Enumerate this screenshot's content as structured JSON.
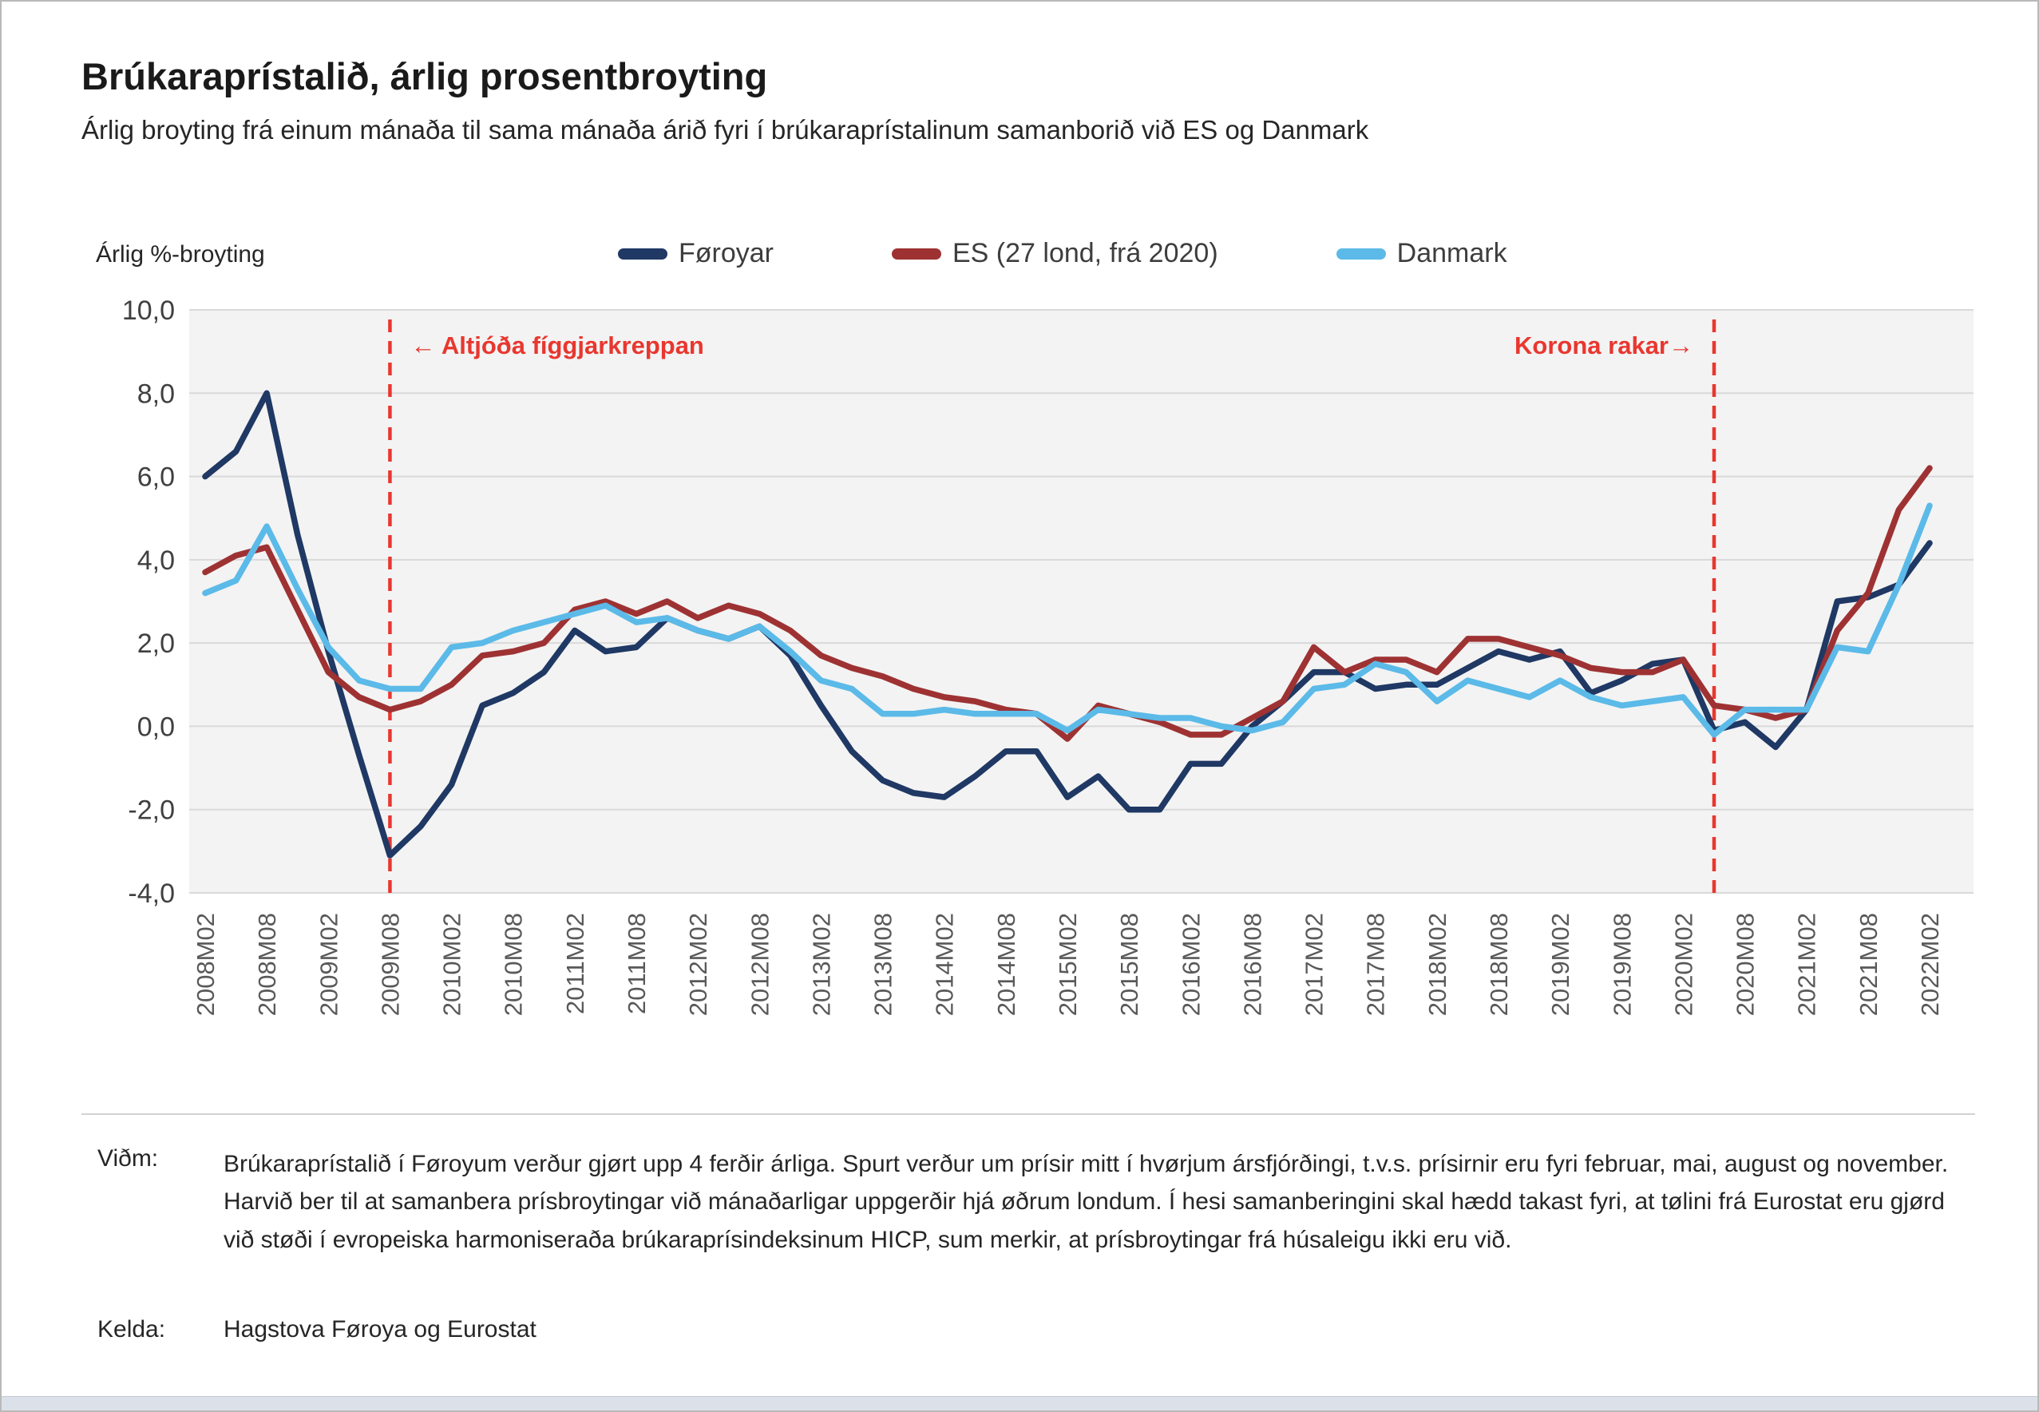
{
  "page": {
    "title": "Brúkaraprístalið, árlig prosentbroyting",
    "subtitle": "Árlig broyting frá einum mánaða til sama mánaða árið fyri í brúkaraprístalinum samanborið við ES og Danmark"
  },
  "chart_data": {
    "type": "line",
    "title": "Brúkaraprístalið, árlig prosentbroyting",
    "ylabel": "Árlig %-broyting",
    "ylim": [
      -4,
      10
    ],
    "ytick_step": 2,
    "grid": true,
    "legend_position": "top",
    "categories": [
      "2008M02",
      "2008M05",
      "2008M08",
      "2008M11",
      "2009M02",
      "2009M05",
      "2009M08",
      "2009M11",
      "2010M02",
      "2010M05",
      "2010M08",
      "2010M11",
      "2011M02",
      "2011M05",
      "2011M08",
      "2011M11",
      "2012M02",
      "2012M05",
      "2012M08",
      "2012M11",
      "2013M02",
      "2013M05",
      "2013M08",
      "2013M11",
      "2014M02",
      "2014M05",
      "2014M08",
      "2014M11",
      "2015M02",
      "2015M05",
      "2015M08",
      "2015M11",
      "2016M02",
      "2016M05",
      "2016M08",
      "2016M11",
      "2017M02",
      "2017M05",
      "2017M08",
      "2017M11",
      "2018M02",
      "2018M05",
      "2018M08",
      "2018M11",
      "2019M02",
      "2019M05",
      "2019M08",
      "2019M11",
      "2020M02",
      "2020M05",
      "2020M08",
      "2020M11",
      "2021M02",
      "2021M05",
      "2021M08",
      "2021M11",
      "2022M02"
    ],
    "xtick_labels": [
      "2008M02",
      "2008M08",
      "2009M02",
      "2009M08",
      "2010M02",
      "2010M08",
      "2011M02",
      "2011M08",
      "2012M02",
      "2012M08",
      "2013M02",
      "2013M08",
      "2014M02",
      "2014M08",
      "2015M02",
      "2015M08",
      "2016M02",
      "2016M08",
      "2017M02",
      "2017M08",
      "2018M02",
      "2018M08",
      "2019M02",
      "2019M08",
      "2020M02",
      "2020M08",
      "2021M02",
      "2021M08",
      "2022M02"
    ],
    "series": [
      {
        "name": "Føroyar",
        "color": "#1F3864",
        "values": [
          6.0,
          6.6,
          8.0,
          4.6,
          1.8,
          -0.7,
          -3.1,
          -2.4,
          -1.4,
          0.5,
          0.8,
          1.3,
          2.3,
          1.8,
          1.9,
          2.6,
          2.3,
          2.1,
          2.4,
          1.7,
          0.5,
          -0.6,
          -1.3,
          -1.6,
          -1.7,
          -1.2,
          -0.6,
          -0.6,
          -1.7,
          -1.2,
          -2.0,
          -2.0,
          -0.9,
          -0.9,
          0.0,
          0.6,
          1.3,
          1.3,
          0.9,
          1.0,
          1.0,
          1.4,
          1.8,
          1.6,
          1.8,
          0.8,
          1.1,
          1.5,
          1.6,
          -0.1,
          0.1,
          -0.5,
          0.4,
          3.0,
          3.1,
          3.4,
          4.4
        ]
      },
      {
        "name": "ES (27 lond, frá 2020)",
        "color": "#9E3233",
        "values": [
          3.7,
          4.1,
          4.3,
          2.8,
          1.3,
          0.7,
          0.4,
          0.6,
          1.0,
          1.7,
          1.8,
          2.0,
          2.8,
          3.0,
          2.7,
          3.0,
          2.6,
          2.9,
          2.7,
          2.3,
          1.7,
          1.4,
          1.2,
          0.9,
          0.7,
          0.6,
          0.4,
          0.3,
          -0.3,
          0.5,
          0.3,
          0.1,
          -0.2,
          -0.2,
          0.2,
          0.6,
          1.9,
          1.3,
          1.6,
          1.6,
          1.3,
          2.1,
          2.1,
          1.9,
          1.7,
          1.4,
          1.3,
          1.3,
          1.6,
          0.5,
          0.4,
          0.2,
          0.4,
          2.3,
          3.2,
          5.2,
          6.2
        ]
      },
      {
        "name": "Danmark",
        "color": "#5BBAE8",
        "values": [
          3.2,
          3.5,
          4.8,
          3.3,
          1.9,
          1.1,
          0.9,
          0.9,
          1.9,
          2.0,
          2.3,
          2.5,
          2.7,
          2.9,
          2.5,
          2.6,
          2.3,
          2.1,
          2.4,
          1.8,
          1.1,
          0.9,
          0.3,
          0.3,
          0.4,
          0.3,
          0.3,
          0.3,
          -0.1,
          0.4,
          0.3,
          0.2,
          0.2,
          0.0,
          -0.1,
          0.1,
          0.9,
          1.0,
          1.5,
          1.3,
          0.6,
          1.1,
          0.9,
          0.7,
          1.1,
          0.7,
          0.5,
          0.6,
          0.7,
          -0.2,
          0.4,
          0.4,
          0.4,
          1.9,
          1.8,
          3.4,
          5.3
        ]
      }
    ],
    "annotations": [
      {
        "label": "← Altjóða fíggjarkreppan",
        "x": "2009M08",
        "color": "#E8372F"
      },
      {
        "label": "Korona rakar→",
        "x": "2020M05",
        "color": "#E8372F"
      }
    ],
    "colors": {
      "gridline": "#D9D9D9",
      "plot_bg": "#F3F3F3",
      "ytick": "#404040",
      "xtick": "#595959"
    }
  },
  "footnotes": {
    "vidm_label": "Viðm:",
    "vidm_text": "Brúkaraprístalið í Føroyum verður gjørt upp 4 ferðir árliga. Spurt verður um prísir mitt í hvørjum ársfjórðingi, t.v.s. prísirnir eru fyri februar, mai, august og november. Harvið ber til at samanbera prísbroytingar við mánaðarligar uppgerðir hjá øðrum londum. Í hesi samanberingini skal hædd takast fyri, at tølini frá Eurostat eru gjørd við støði í evropeiska harmoniseraða brúkaraprísindeksinum HICP, sum merkir, at prísbroytingar frá húsaleigu ikki eru við.",
    "kelda_label": "Kelda:",
    "kelda_text": "Hagstova Føroya og Eurostat"
  }
}
